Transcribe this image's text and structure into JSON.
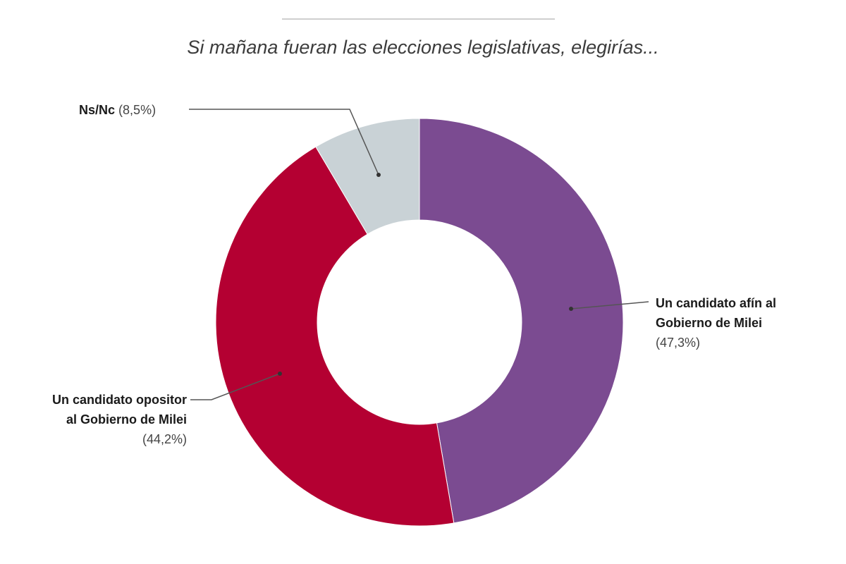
{
  "chart_data": {
    "type": "pie",
    "variant": "donut",
    "title": "Si mañana fueran las elecciones legislativas, elegirías...",
    "slices": [
      {
        "label_line1": "Un candidato afín al",
        "label_line2": "Gobierno de Milei",
        "value": 47.3,
        "value_label": "(47,3%)",
        "color": "#7b4b91"
      },
      {
        "label_line1": "Un candidato opositor",
        "label_line2": "al Gobierno de Milei",
        "value": 44.2,
        "value_label": "(44,2%)",
        "color": "#b40032"
      },
      {
        "label_line1": "Ns/Nc",
        "value": 8.5,
        "value_label": "(8,5%)",
        "color": "#c9d2d6"
      }
    ],
    "start": "top",
    "direction": "clockwise"
  }
}
